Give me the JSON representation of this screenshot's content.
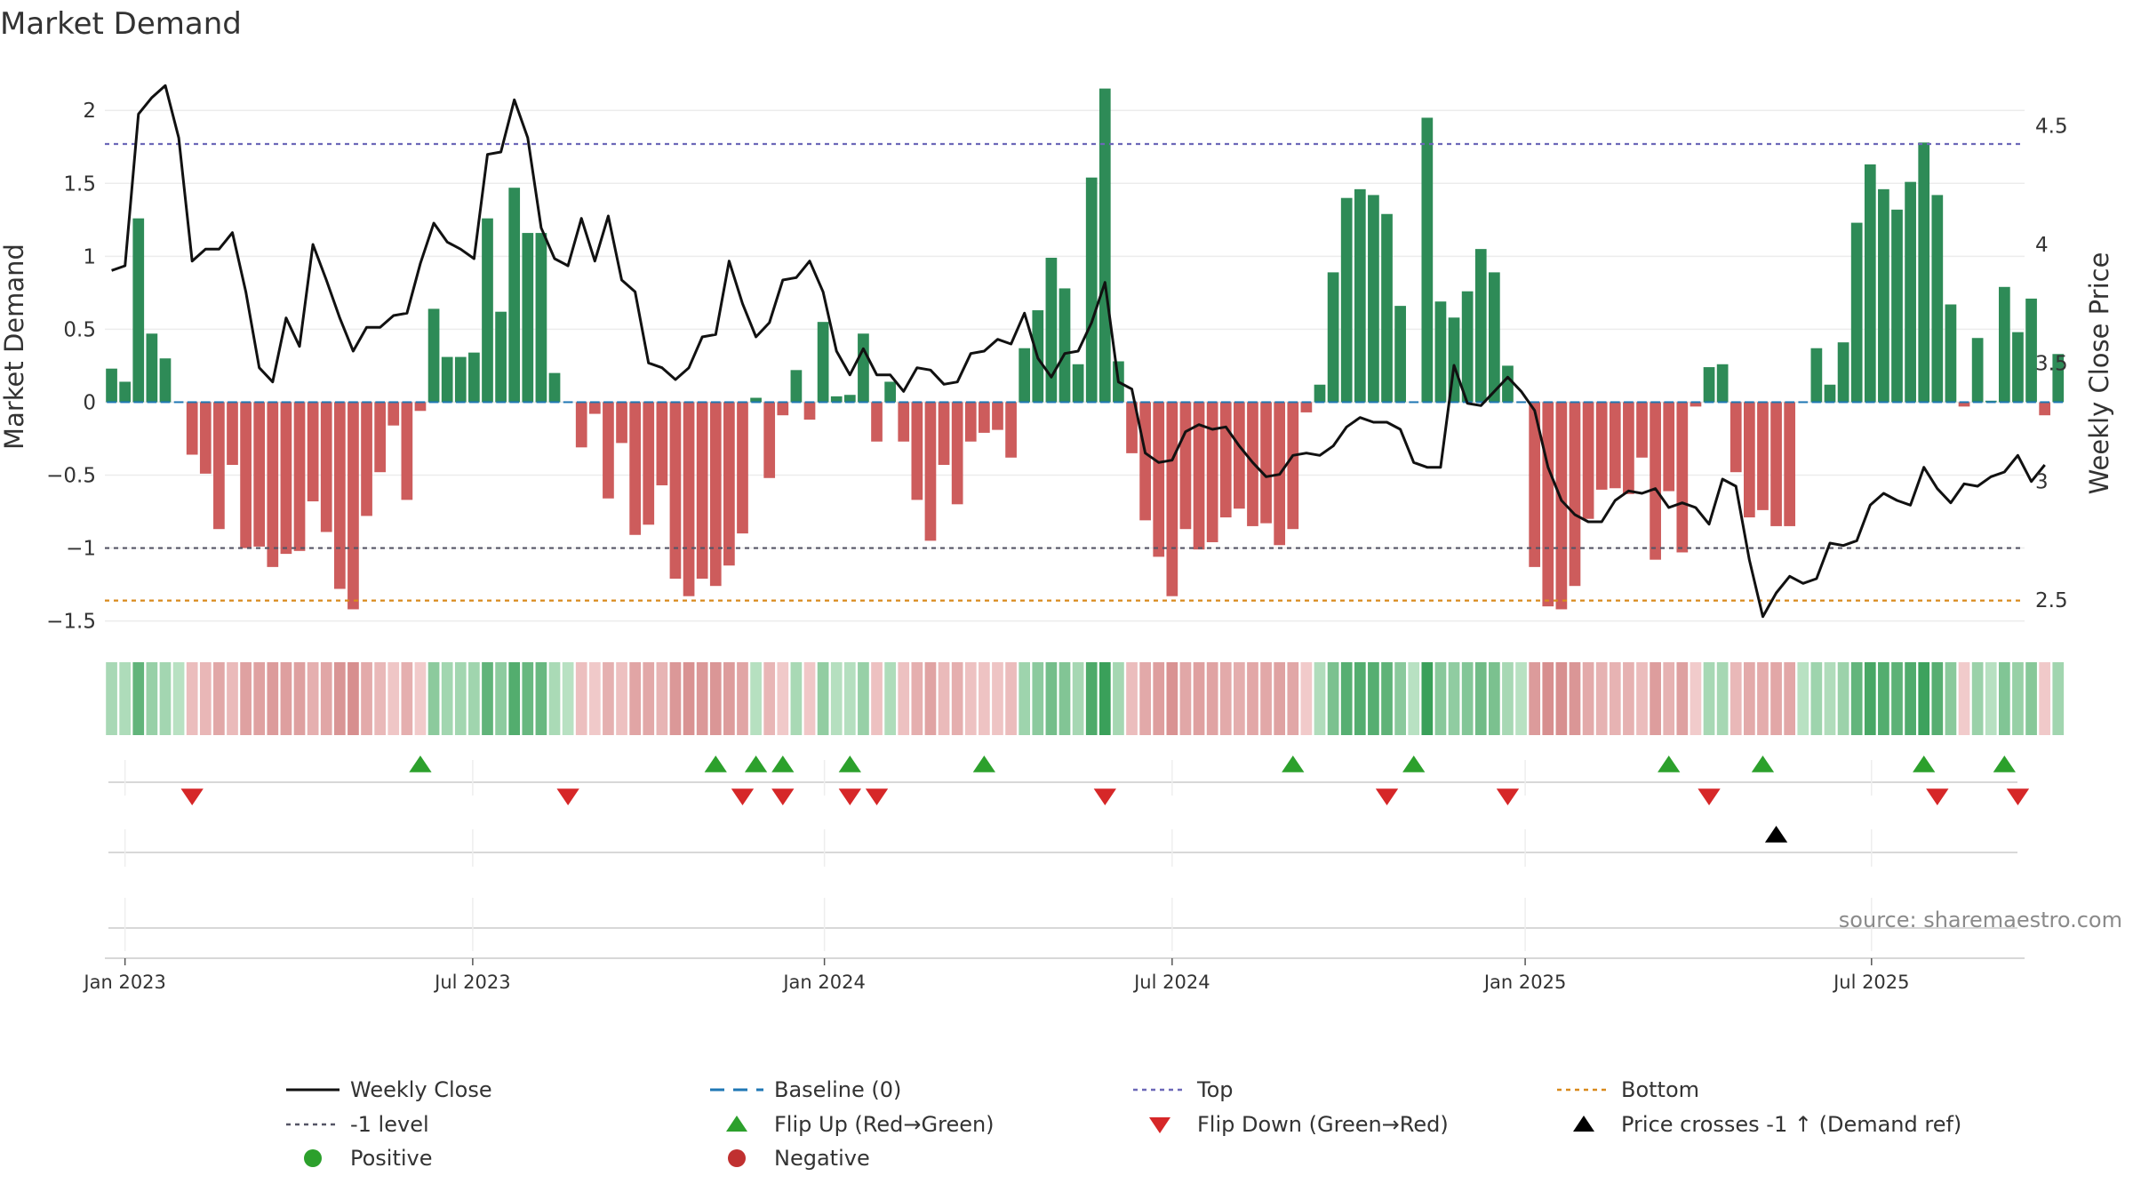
{
  "chart_data": {
    "type": "bar",
    "title": "Market Demand",
    "ylabel": "Market Demand",
    "y2label": "Weekly Close Price",
    "ylim": [
      -1.6,
      2.3
    ],
    "y2lim": [
      2.35,
      4.75
    ],
    "yticks": [
      "2",
      "1.5",
      "1",
      "0.5",
      "0",
      "−0.5",
      "−1",
      "−1.5"
    ],
    "ytick_values": [
      2,
      1.5,
      1,
      0.5,
      0,
      -0.5,
      -1,
      -1.5
    ],
    "y2ticks": [
      "4.5",
      "4",
      "3.5",
      "3",
      "2.5"
    ],
    "y2tick_values": [
      4.5,
      4,
      3.5,
      3,
      2.5
    ],
    "x_start": "2022-12-26",
    "x_weeks": 143,
    "xticks": [
      {
        "label": "Jan 2023",
        "week": 1
      },
      {
        "label": "Jul 2023",
        "week": 26.9
      },
      {
        "label": "Jan 2024",
        "week": 53.1
      },
      {
        "label": "Jul 2024",
        "week": 79
      },
      {
        "label": "Jan 2025",
        "week": 105.3
      },
      {
        "label": "Jul 2025",
        "week": 131.1
      }
    ],
    "reference_lines": {
      "top": 1.77,
      "minus_one_level": -1.0,
      "bottom": -1.36,
      "baseline": 0
    },
    "series": [
      {
        "name": "Market Demand",
        "kind": "bar",
        "values": [
          0.23,
          0.14,
          1.26,
          0.47,
          0.3,
          0,
          -0.36,
          -0.49,
          -0.87,
          -0.43,
          -1.0,
          -0.99,
          -1.13,
          -1.04,
          -1.02,
          -0.68,
          -0.89,
          -1.28,
          -1.42,
          -0.78,
          -0.48,
          -0.16,
          -0.67,
          -0.06,
          0.64,
          0.31,
          0.31,
          0.34,
          1.26,
          0.62,
          1.47,
          1.16,
          1.16,
          0.2,
          0,
          -0.31,
          -0.08,
          -0.66,
          -0.28,
          -0.91,
          -0.84,
          -0.57,
          -1.21,
          -1.33,
          -1.21,
          -1.26,
          -1.12,
          -0.9,
          0.03,
          -0.52,
          -0.09,
          0.22,
          -0.12,
          0.55,
          0.04,
          0.05,
          0.47,
          -0.27,
          0.14,
          -0.27,
          -0.67,
          -0.95,
          -0.43,
          -0.7,
          -0.27,
          -0.21,
          -0.19,
          -0.38,
          0.37,
          0.63,
          0.99,
          0.78,
          0.26,
          1.54,
          2.15,
          0.28,
          -0.35,
          -0.81,
          -1.06,
          -1.33,
          -0.87,
          -1.01,
          -0.96,
          -0.79,
          -0.73,
          -0.85,
          -0.83,
          -0.98,
          -0.87,
          -0.07,
          0.12,
          0.89,
          1.4,
          1.46,
          1.42,
          1.29,
          0.66,
          0,
          1.95,
          0.69,
          0.58,
          0.76,
          1.05,
          0.89,
          0.25,
          0,
          -1.13,
          -1.4,
          -1.42,
          -1.26,
          -0.8,
          -0.6,
          -0.59,
          -0.63,
          -0.38,
          -1.08,
          -0.61,
          -1.03,
          -0.03,
          0.24,
          0.26,
          -0.48,
          -0.79,
          -0.74,
          -0.85,
          -0.85,
          0,
          0.37,
          0.12,
          0.41,
          1.23,
          1.63,
          1.46,
          1.32,
          1.51,
          1.78,
          1.42,
          0.67,
          -0.03,
          0.44,
          0.01,
          0.79,
          0.48,
          0.71,
          -0.09,
          0.33
        ]
      },
      {
        "name": "Weekly Close",
        "kind": "line",
        "axis": "right",
        "values": [
          3.89,
          3.91,
          4.55,
          4.62,
          4.67,
          4.45,
          3.93,
          3.98,
          3.98,
          4.05,
          3.8,
          3.48,
          3.42,
          3.69,
          3.57,
          4.0,
          3.85,
          3.69,
          3.55,
          3.65,
          3.65,
          3.7,
          3.71,
          3.92,
          4.09,
          4.01,
          3.98,
          3.94,
          4.38,
          4.39,
          4.61,
          4.45,
          4.07,
          3.94,
          3.91,
          4.11,
          3.93,
          4.12,
          3.85,
          3.8,
          3.5,
          3.48,
          3.43,
          3.48,
          3.61,
          3.62,
          3.93,
          3.75,
          3.61,
          3.67,
          3.85,
          3.86,
          3.93,
          3.8,
          3.55,
          3.45,
          3.56,
          3.45,
          3.45,
          3.38,
          3.48,
          3.47,
          3.41,
          3.42,
          3.54,
          3.55,
          3.6,
          3.58,
          3.71,
          3.52,
          3.44,
          3.54,
          3.55,
          3.67,
          3.84,
          3.42,
          3.39,
          3.12,
          3.08,
          3.09,
          3.21,
          3.24,
          3.22,
          3.23,
          3.15,
          3.08,
          3.02,
          3.03,
          3.11,
          3.12,
          3.11,
          3.15,
          3.23,
          3.27,
          3.25,
          3.25,
          3.22,
          3.08,
          3.06,
          3.06,
          3.49,
          3.33,
          3.32,
          3.38,
          3.44,
          3.38,
          3.3,
          3.06,
          2.92,
          2.86,
          2.83,
          2.83,
          2.92,
          2.96,
          2.95,
          2.97,
          2.89,
          2.91,
          2.89,
          2.82,
          3.01,
          2.98,
          2.67,
          2.43,
          2.53,
          2.6,
          2.57,
          2.59,
          2.74,
          2.73,
          2.75,
          2.9,
          2.95,
          2.92,
          2.9,
          3.06,
          2.97,
          2.91,
          2.99,
          2.98,
          3.02,
          3.04,
          3.11,
          3.0,
          3.07
        ]
      }
    ],
    "flip_up_weeks": [
      23,
      45,
      48,
      50,
      55,
      65,
      88,
      97,
      116,
      123,
      135,
      141
    ],
    "flip_down_weeks": [
      6,
      34,
      47,
      50,
      55,
      57,
      74,
      95,
      104,
      119,
      136,
      142
    ],
    "price_cross_weeks": [
      124
    ],
    "legend": [
      {
        "label": "Weekly Close",
        "symbol": "line",
        "color": "#111111"
      },
      {
        "label": "Baseline (0)",
        "symbol": "dash",
        "color": "#1f77b4"
      },
      {
        "label": "Top",
        "symbol": "dot",
        "color": "#6c68b8"
      },
      {
        "label": "Bottom",
        "symbol": "dot",
        "color": "#d98a1c"
      },
      {
        "label": "-1 level",
        "symbol": "dot",
        "color": "#555566"
      },
      {
        "label": "Flip Up (Red→Green)",
        "symbol": "triangle-up",
        "color": "#2ca02c"
      },
      {
        "label": "Flip Down (Green→Red)",
        "symbol": "triangle-down",
        "color": "#d62728"
      },
      {
        "label": "Price crosses -1 ↑ (Demand ref)",
        "symbol": "triangle-up",
        "color": "#000000"
      },
      {
        "label": "Positive",
        "symbol": "circle",
        "color": "#2ca02c"
      },
      {
        "label": "Negative",
        "symbol": "circle",
        "color": "#c03030"
      }
    ],
    "source": "source: sharemaestro.com"
  },
  "colors": {
    "positive_bar": "#2e8b57",
    "negative_bar": "#cd5c5c",
    "flip_up": "#2ca02c",
    "flip_down": "#d62728",
    "price_line": "#111111"
  }
}
